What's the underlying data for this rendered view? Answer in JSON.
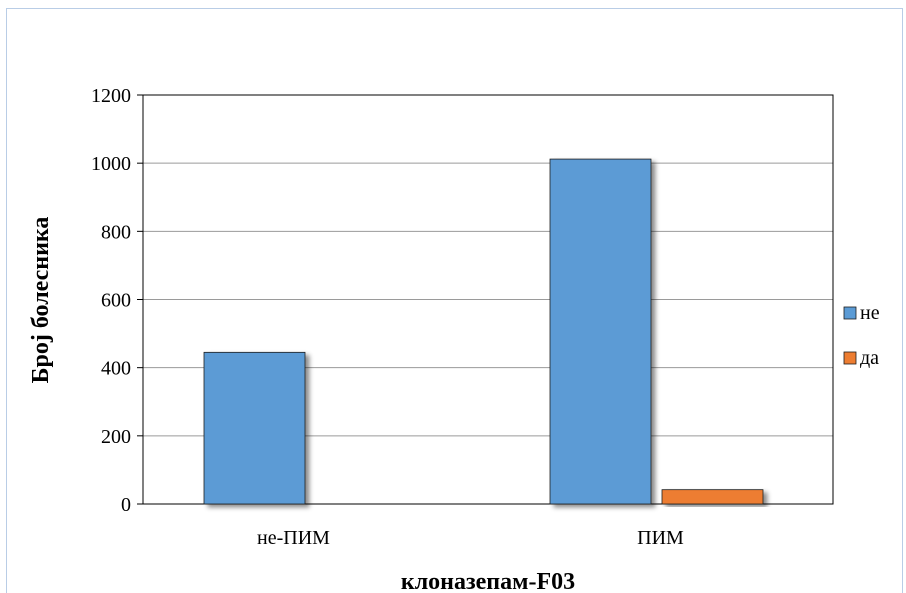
{
  "chart_data": {
    "type": "bar",
    "categories": [
      "не-ПИМ",
      "ПИМ"
    ],
    "series": [
      {
        "name": "не",
        "values": [
          445,
          1012
        ],
        "color": "#5b9bd5"
      },
      {
        "name": "да",
        "values": [
          0,
          42
        ],
        "color": "#ed7d31"
      }
    ],
    "ylim": [
      0,
      1200
    ],
    "yticks": [
      0,
      200,
      400,
      600,
      800,
      1000,
      1200
    ],
    "xlabel": "клоназепам-F03",
    "ylabel": "Број болесника",
    "grid": true,
    "legend": "right"
  }
}
